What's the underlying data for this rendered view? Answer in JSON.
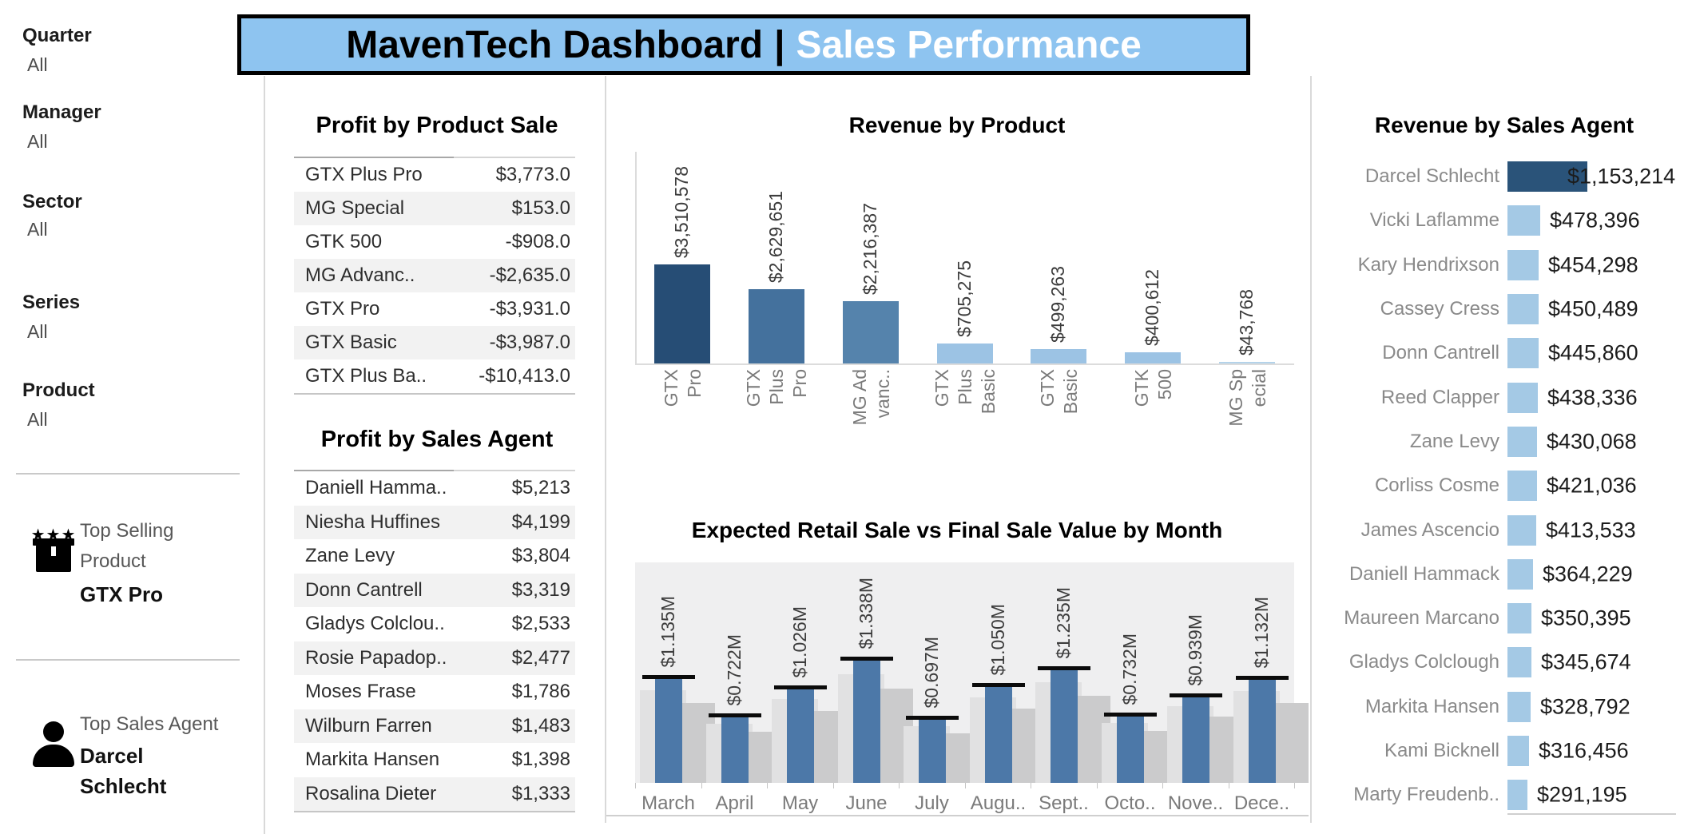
{
  "header": {
    "title_primary": "MavenTech Dashboard",
    "separator": "|",
    "title_secondary": "Sales Performance"
  },
  "colors": {
    "banner_bg": "#8ec4f0",
    "navy_dark": "#264d75",
    "steel_mid": "#44719d",
    "steel_light2": "#5583ac",
    "blue_light": "#9cc3e4",
    "agent_light": "#a4c9e5",
    "monthly_blue": "#4c78a8",
    "plot_bg": "#efeff0"
  },
  "sidebar": {
    "filters": [
      {
        "label": "Quarter",
        "value": "All"
      },
      {
        "label": "Manager",
        "value": "All"
      },
      {
        "label": "Sector",
        "value": "All"
      },
      {
        "label": "Series",
        "value": "All"
      },
      {
        "label": "Product",
        "value": "All"
      }
    ],
    "top_selling_product": {
      "caption_line1": "Top Selling",
      "caption_line2": "Product",
      "value": "GTX Pro"
    },
    "top_sales_agent": {
      "caption": "Top Sales Agent",
      "value_line1": "Darcel",
      "value_line2": "Schlecht"
    }
  },
  "tables": {
    "profit_by_product": {
      "title": "Profit by Product Sale",
      "rows": [
        {
          "name": "GTX Plus Pro",
          "value": "$3,773.0"
        },
        {
          "name": "MG Special",
          "value": "$153.0"
        },
        {
          "name": "GTK 500",
          "value": "-$908.0"
        },
        {
          "name": "MG Advanc..",
          "value": "-$2,635.0"
        },
        {
          "name": "GTX Pro",
          "value": "-$3,931.0"
        },
        {
          "name": "GTX Basic",
          "value": "-$3,987.0"
        },
        {
          "name": "GTX Plus Ba..",
          "value": "-$10,413.0"
        }
      ]
    },
    "profit_by_agent": {
      "title": "Profit by Sales Agent",
      "rows": [
        {
          "name": "Daniell Hamma..",
          "value": "$5,213"
        },
        {
          "name": "Niesha Huffines",
          "value": "$4,199"
        },
        {
          "name": "Zane Levy",
          "value": "$3,804"
        },
        {
          "name": "Donn Cantrell",
          "value": "$3,319"
        },
        {
          "name": "Gladys Colclou..",
          "value": "$2,533"
        },
        {
          "name": "Rosie Papadop..",
          "value": "$2,477"
        },
        {
          "name": "Moses Frase",
          "value": "$1,786"
        },
        {
          "name": "Wilburn Farren",
          "value": "$1,483"
        },
        {
          "name": "Markita Hansen",
          "value": "$1,398"
        },
        {
          "name": "Rosalina Dieter",
          "value": "$1,333"
        }
      ]
    }
  },
  "chart_data": [
    {
      "id": "revenue_by_product",
      "type": "bar",
      "title": "Revenue by Product",
      "categories": [
        "GTX Pro",
        "GTX Plus Pro",
        "MG Advanced",
        "GTX Plus Basic",
        "GTX Basic",
        "GTK 500",
        "MG Special"
      ],
      "category_label_lines": [
        [
          "GTX",
          "Pro"
        ],
        [
          "GTX",
          "Plus",
          "Pro"
        ],
        [
          "MG Ad",
          "vanc.."
        ],
        [
          "GTX",
          "Plus",
          "Basic"
        ],
        [
          "GTX",
          "Basic"
        ],
        [
          "GTK",
          "500"
        ],
        [
          "MG Sp",
          "ecial"
        ]
      ],
      "values": [
        3510578,
        2629651,
        2216387,
        705275,
        499263,
        400612,
        43768
      ],
      "value_labels": [
        "$3,510,578",
        "$2,629,651",
        "$2,216,387",
        "$705,275",
        "$499,263",
        "$400,612",
        "$43,768"
      ],
      "bar_colors": [
        "#264d75",
        "#44719d",
        "#5583ac",
        "#9cc3e4",
        "#9cc3e4",
        "#9cc3e4",
        "#b4d3ea"
      ],
      "ylabel": "",
      "xlabel": "",
      "grid": false,
      "ylim": [
        0,
        3700000
      ],
      "value_label_rotation": 90
    },
    {
      "id": "expected_vs_final_by_month",
      "type": "bar",
      "title": "Expected Retail Sale vs Final Sale Value by Month",
      "categories": [
        "March",
        "April",
        "May",
        "June",
        "July",
        "Augu..",
        "Sept..",
        "Octo..",
        "Nove..",
        "Dece.."
      ],
      "series": [
        {
          "name": "Final Sale Value (blue bars with black reference line)",
          "values_millions_usd": [
            1.135,
            0.722,
            1.026,
            1.338,
            0.697,
            1.05,
            1.235,
            0.732,
            0.939,
            1.132
          ],
          "labels": [
            "$1.135M",
            "$0.722M",
            "$1.026M",
            "$1.338M",
            "$0.697M",
            "$1.050M",
            "$1.235M",
            "$0.732M",
            "$0.939M",
            "$1.132M"
          ]
        },
        {
          "name": "Expected Retail Sale (unlabeled gray background bars, heights estimated as fraction of final value)",
          "light_gray_fraction_of_final": 0.88,
          "mid_gray_fraction_of_final": 0.76
        }
      ],
      "ylim_millions": [
        0,
        2.41
      ],
      "grid": false,
      "plot_background": "#efeff0"
    },
    {
      "id": "revenue_by_sales_agent",
      "type": "bar",
      "orientation": "horizontal",
      "title": "Revenue by Sales Agent",
      "categories": [
        "Darcel Schlecht",
        "Vicki Laflamme",
        "Kary Hendrixson",
        "Cassey Cress",
        "Donn Cantrell",
        "Reed Clapper",
        "Zane Levy",
        "Corliss Cosme",
        "James Ascencio",
        "Daniell Hammack",
        "Maureen Marcano",
        "Gladys Colclough",
        "Markita Hansen",
        "Kami Bicknell",
        "Marty Freudenb.."
      ],
      "values": [
        1153214,
        478396,
        454298,
        450489,
        445860,
        438336,
        430068,
        421036,
        413533,
        364229,
        350395,
        345674,
        328792,
        316456,
        291195
      ],
      "value_labels": [
        "$1,153,214",
        "$478,396",
        "$454,298",
        "$450,489",
        "$445,860",
        "$438,336",
        "$430,068",
        "$421,036",
        "$413,533",
        "$364,229",
        "$350,395",
        "$345,674",
        "$328,792",
        "$316,456",
        "$291,195"
      ],
      "highlight_first_bar_color": "#2a5379",
      "bar_color": "#a4c9e5",
      "xlim": [
        0,
        1160000
      ],
      "grid": false
    }
  ]
}
